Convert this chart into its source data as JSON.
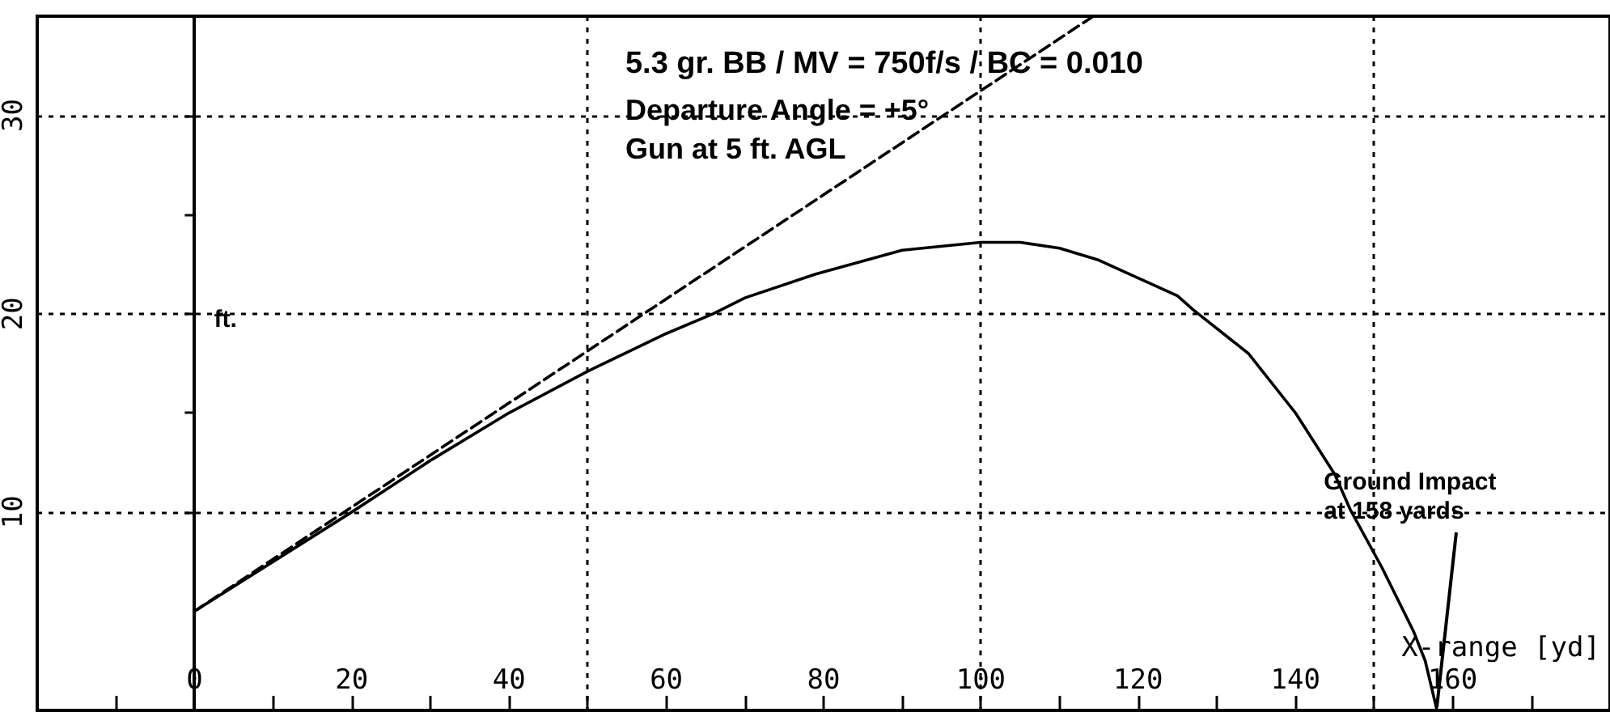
{
  "chart_data": {
    "type": "line",
    "title": "5.3 gr. BB / MV = 750f/s / BC = 0.010",
    "subtitle": "Departure Angle = +5°\nGun at 5 ft. AGL",
    "xlabel": "X-range [yd]",
    "ylabel": "ft.",
    "xlim": [
      -20,
      180
    ],
    "ylim": [
      0,
      35
    ],
    "xticks": [
      {
        "value": -10,
        "label": null
      },
      0,
      {
        "value": 10,
        "label": null
      },
      20,
      {
        "value": 30,
        "label": null
      },
      40,
      {
        "value": 50,
        "label": null
      },
      60,
      {
        "value": 70,
        "label": null
      },
      80,
      {
        "value": 90,
        "label": null
      },
      100,
      {
        "value": 110,
        "label": null
      },
      120,
      {
        "value": 130,
        "label": null
      },
      140,
      {
        "value": 150,
        "label": null
      },
      160,
      {
        "value": 170,
        "label": null
      }
    ],
    "yticks": [
      10,
      {
        "value": 15,
        "label": null
      },
      20,
      {
        "value": 25,
        "label": null
      },
      30
    ],
    "grid": true,
    "marker": "none",
    "series": [
      {
        "color": "#000000",
        "line_style": "solid",
        "x": [
          0,
          10,
          20,
          30,
          40,
          50,
          60,
          66,
          70,
          79,
          90,
          100,
          105,
          110,
          115,
          120,
          125,
          127,
          134,
          140,
          145,
          147,
          151,
          155,
          156.5,
          158
        ],
        "values": [
          5,
          7.5,
          10,
          12.6,
          15,
          17.1,
          19,
          20,
          20.8,
          22,
          23.2,
          23.6,
          23.6,
          23.3,
          22.7,
          21.8,
          20.9,
          20.2,
          18,
          15,
          11.9,
          10.1,
          7.2,
          4,
          2.5,
          0
        ]
      },
      {
        "color": "#000000",
        "line_style": "dashed",
        "x": [
          0,
          114.3
        ],
        "values": [
          5,
          35
        ]
      }
    ],
    "annotations": [
      {
        "text": "Ground Impact\nat 158 yards",
        "x": 158,
        "y": 0
      }
    ]
  }
}
